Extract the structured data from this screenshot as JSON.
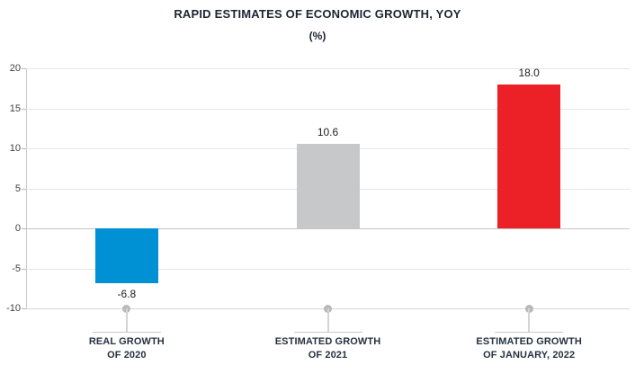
{
  "title": "RAPID ESTIMATES OF ECONOMIC GROWTH, YOY",
  "subtitle": "(%)",
  "chart_data": {
    "type": "bar",
    "title": "RAPID ESTIMATES OF ECONOMIC GROWTH, YOY",
    "subtitle": "(%)",
    "xlabel": "",
    "ylabel": "",
    "categories": [
      [
        "REAL GROWTH",
        "OF 2020"
      ],
      [
        "ESTIMATED GROWTH",
        "OF 2021"
      ],
      [
        "ESTIMATED GROWTH",
        "OF JANUARY, 2022"
      ]
    ],
    "values": [
      -6.8,
      10.6,
      18.0
    ],
    "value_labels": [
      "-6.8",
      "10.6",
      "18.0"
    ],
    "colors": [
      "#0090d4",
      "#c7c8ca",
      "#ec2127"
    ],
    "yticks": [
      20,
      15,
      10,
      5,
      0,
      -5,
      -10
    ],
    "ylim": [
      -10,
      20
    ],
    "grid": true,
    "legend": "none"
  }
}
